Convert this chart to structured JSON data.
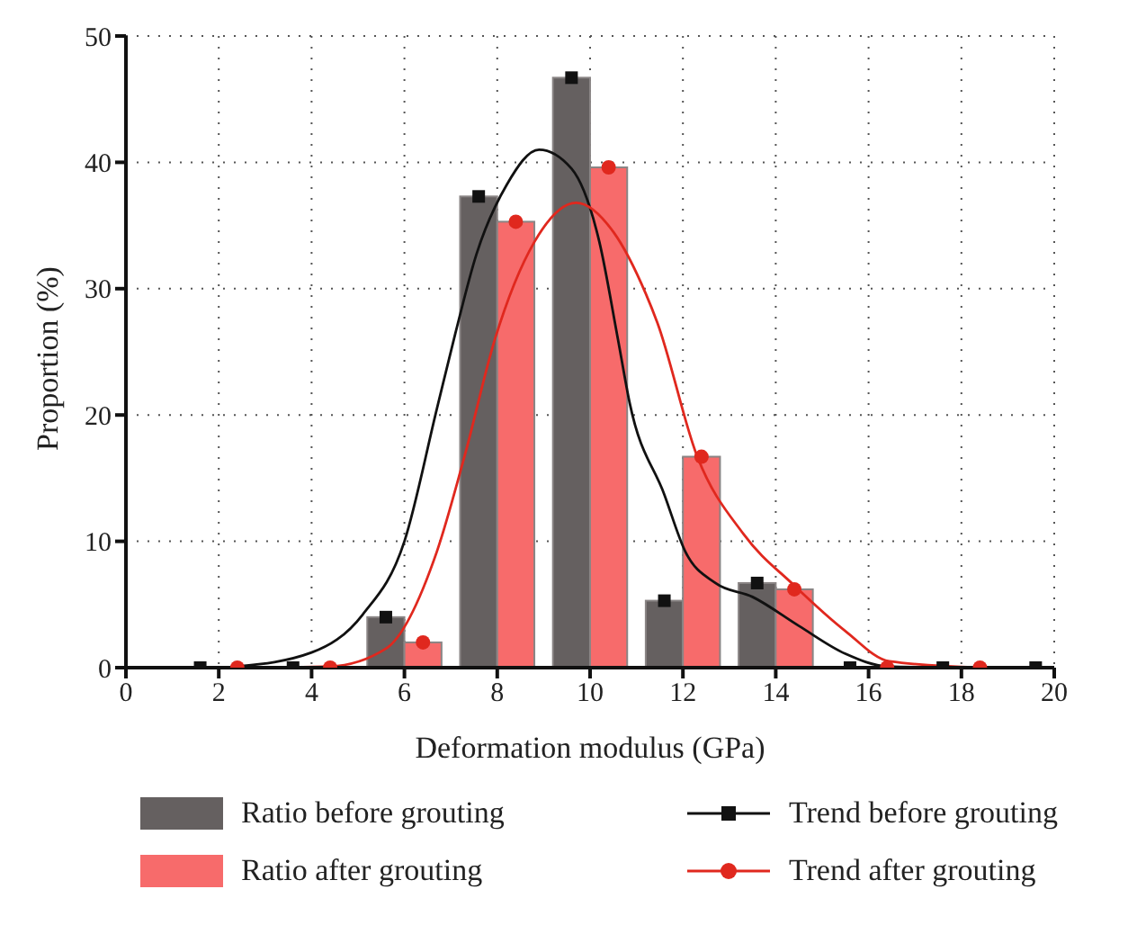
{
  "chart_data": {
    "type": "bar",
    "xlabel": "Deformation modulus (GPa)",
    "ylabel": "Proportion (%)",
    "xlim": [
      0,
      20
    ],
    "xticks": [
      0,
      2,
      4,
      6,
      8,
      10,
      12,
      14,
      16,
      18,
      20
    ],
    "ylim": [
      0,
      50
    ],
    "yticks": [
      0,
      10,
      20,
      30,
      40,
      50
    ],
    "grid": true,
    "legend": "bottom",
    "series": [
      {
        "name": "Ratio before grouting",
        "color": "#656060",
        "x": [
          5.6,
          7.6,
          9.6,
          11.6,
          13.6
        ],
        "values": [
          4,
          37.3,
          46.7,
          5.3,
          6.7
        ]
      },
      {
        "name": "Ratio after grouting",
        "color": "#f76b6b",
        "x": [
          6.4,
          8.4,
          10.4,
          12.4,
          14.4
        ],
        "values": [
          2,
          35.3,
          39.6,
          16.7,
          6.2
        ]
      },
      {
        "name": "Trend before grouting",
        "type": "scatter",
        "marker": "square",
        "color": "#111111",
        "x": [
          1.6,
          3.6,
          5.6,
          7.6,
          9.6,
          11.6,
          13.6,
          15.6,
          17.6,
          19.6
        ],
        "values": [
          0,
          0,
          4,
          37.3,
          46.7,
          5.3,
          6.7,
          0,
          0,
          0
        ]
      },
      {
        "name": "Trend after grouting",
        "type": "scatter",
        "marker": "circle",
        "color": "#e0281e",
        "x": [
          2.4,
          4.4,
          6.4,
          8.4,
          10.4,
          12.4,
          14.4,
          16.4,
          18.4
        ],
        "values": [
          0,
          0,
          2,
          35.3,
          39.6,
          16.7,
          6.2,
          0,
          0
        ]
      },
      {
        "type": "line",
        "color": "#111111",
        "x": [
          2.4,
          4.0,
          5.1,
          6.0,
          6.7,
          7.1,
          7.55,
          8.2,
          8.9,
          9.6,
          10.2,
          10.6,
          10.85,
          11.6,
          12.05,
          12.7,
          13.5,
          14.5,
          15.5,
          16.4,
          18
        ],
        "values": [
          0.1,
          1.2,
          4.2,
          10,
          20.5,
          26.5,
          32.7,
          38.2,
          41,
          39.5,
          33.7,
          26,
          21,
          13.7,
          9.2,
          6.7,
          5.6,
          3.3,
          1.1,
          0.1,
          0
        ]
      },
      {
        "type": "line",
        "color": "#e0281e",
        "x": [
          2.4,
          4.4,
          5.6,
          6.7,
          7.3,
          7.95,
          8.8,
          9.7,
          10.5,
          11.2,
          11.45,
          12.3,
          13.3,
          14.4,
          15.5,
          16.45,
          18.4
        ],
        "values": [
          0,
          0.1,
          1.5,
          9.2,
          16.8,
          26,
          33.7,
          36.8,
          34.5,
          29.6,
          27.3,
          16.8,
          10.6,
          6.5,
          2.9,
          0.5,
          0
        ]
      }
    ]
  }
}
